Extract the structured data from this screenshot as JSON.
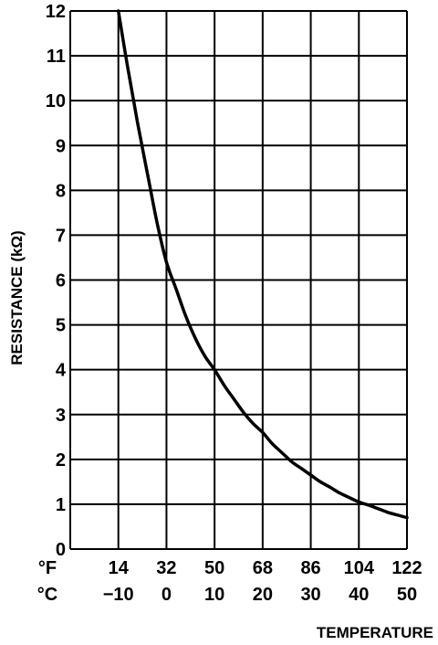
{
  "chart_data": {
    "type": "line",
    "xlabel": "TEMPERATURE",
    "ylabel": "RESISTANCE (kΩ)",
    "x_unit_labels": {
      "fahrenheit": "°F",
      "celsius": "°C"
    },
    "x_ticks_fahrenheit": [
      "14",
      "32",
      "50",
      "68",
      "86",
      "104",
      "122"
    ],
    "x_ticks_celsius": [
      "−10",
      "0",
      "10",
      "20",
      "30",
      "40",
      "50"
    ],
    "xlim": [
      -20,
      50
    ],
    "ylim": [
      0,
      12
    ],
    "yticks": [
      "0",
      "1",
      "2",
      "3",
      "4",
      "5",
      "6",
      "7",
      "8",
      "9",
      "10",
      "11",
      "12"
    ],
    "grid": true,
    "series": [
      {
        "x": [
          -10,
          -8,
          -6,
          -4,
          -2,
          0,
          2,
          4,
          6,
          8,
          10,
          12,
          14,
          16,
          18,
          20,
          22,
          24,
          26,
          28,
          30,
          32,
          34,
          36,
          38,
          40,
          42,
          44,
          46,
          48,
          50
        ],
        "y": [
          12.0,
          10.7,
          9.5,
          8.4,
          7.3,
          6.4,
          5.8,
          5.2,
          4.7,
          4.3,
          4.0,
          3.65,
          3.35,
          3.05,
          2.8,
          2.6,
          2.35,
          2.15,
          1.95,
          1.8,
          1.65,
          1.5,
          1.38,
          1.25,
          1.15,
          1.05,
          0.98,
          0.9,
          0.82,
          0.76,
          0.7
        ]
      }
    ]
  }
}
